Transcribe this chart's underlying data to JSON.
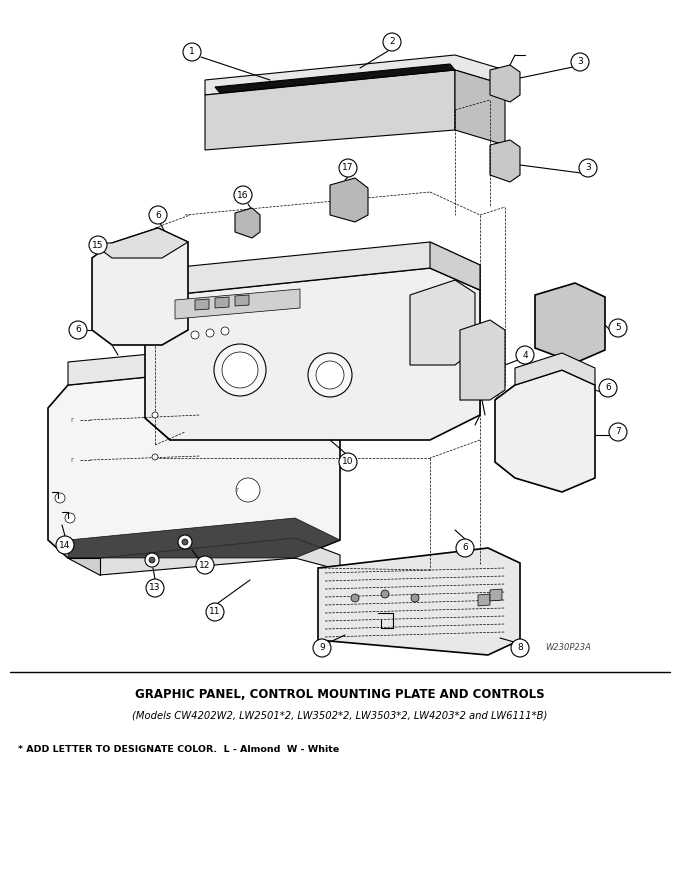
{
  "title_line1": "GRAPHIC PANEL, CONTROL MOUNTING PLATE AND CONTROLS",
  "title_line2": "(Models CW4202W2, LW2501*2, LW3502*2, LW3503*2, LW4203*2 and LW6111*B)",
  "footnote": "* ADD LETTER TO DESIGNATE COLOR.  L - Almond  W - White",
  "watermark": "W230P23A",
  "background_color": "#ffffff",
  "line_color": "#000000",
  "fig_width": 6.8,
  "fig_height": 8.75,
  "dpi": 100
}
